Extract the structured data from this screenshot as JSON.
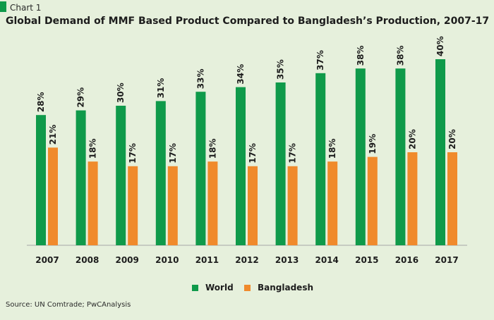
{
  "header": {
    "chart_label": "Chart 1",
    "title": "Global Demand of MMF Based Product Compared to Bangladesh’s Production, 2007-17"
  },
  "footer": {
    "source": "Source: UN Comtrade; PwCAnalysis"
  },
  "colors": {
    "world": "#0f9a4a",
    "bangladesh": "#f08a2c",
    "background": "#e6f0dc",
    "axis": "#a6a6a6"
  },
  "chart_data": {
    "type": "bar",
    "title": "Global Demand of MMF Based Product Compared to Bangladesh’s Production, 2007-17",
    "xlabel": "",
    "ylabel": "",
    "ylim": [
      0,
      45
    ],
    "grid": false,
    "legend_position": "bottom-center",
    "categories": [
      "2007",
      "2008",
      "2009",
      "2010",
      "2011",
      "2012",
      "2013",
      "2014",
      "2015",
      "2016",
      "2017"
    ],
    "series": [
      {
        "name": "World",
        "values": [
          28,
          29,
          30,
          31,
          33,
          34,
          35,
          37,
          38,
          38,
          40
        ]
      },
      {
        "name": "Bangladesh",
        "values": [
          21,
          18,
          17,
          17,
          18,
          17,
          17,
          18,
          19,
          20,
          20
        ]
      }
    ],
    "data_labels": [
      [
        "28%",
        "29%",
        "30%",
        "31%",
        "33%",
        "34%",
        "35%",
        "37%",
        "38%",
        "38%",
        "40%"
      ],
      [
        "21%",
        "18%",
        "17%",
        "17%",
        "18%",
        "17%",
        "17%",
        "18%",
        "19%",
        "20%",
        "20%"
      ]
    ]
  }
}
